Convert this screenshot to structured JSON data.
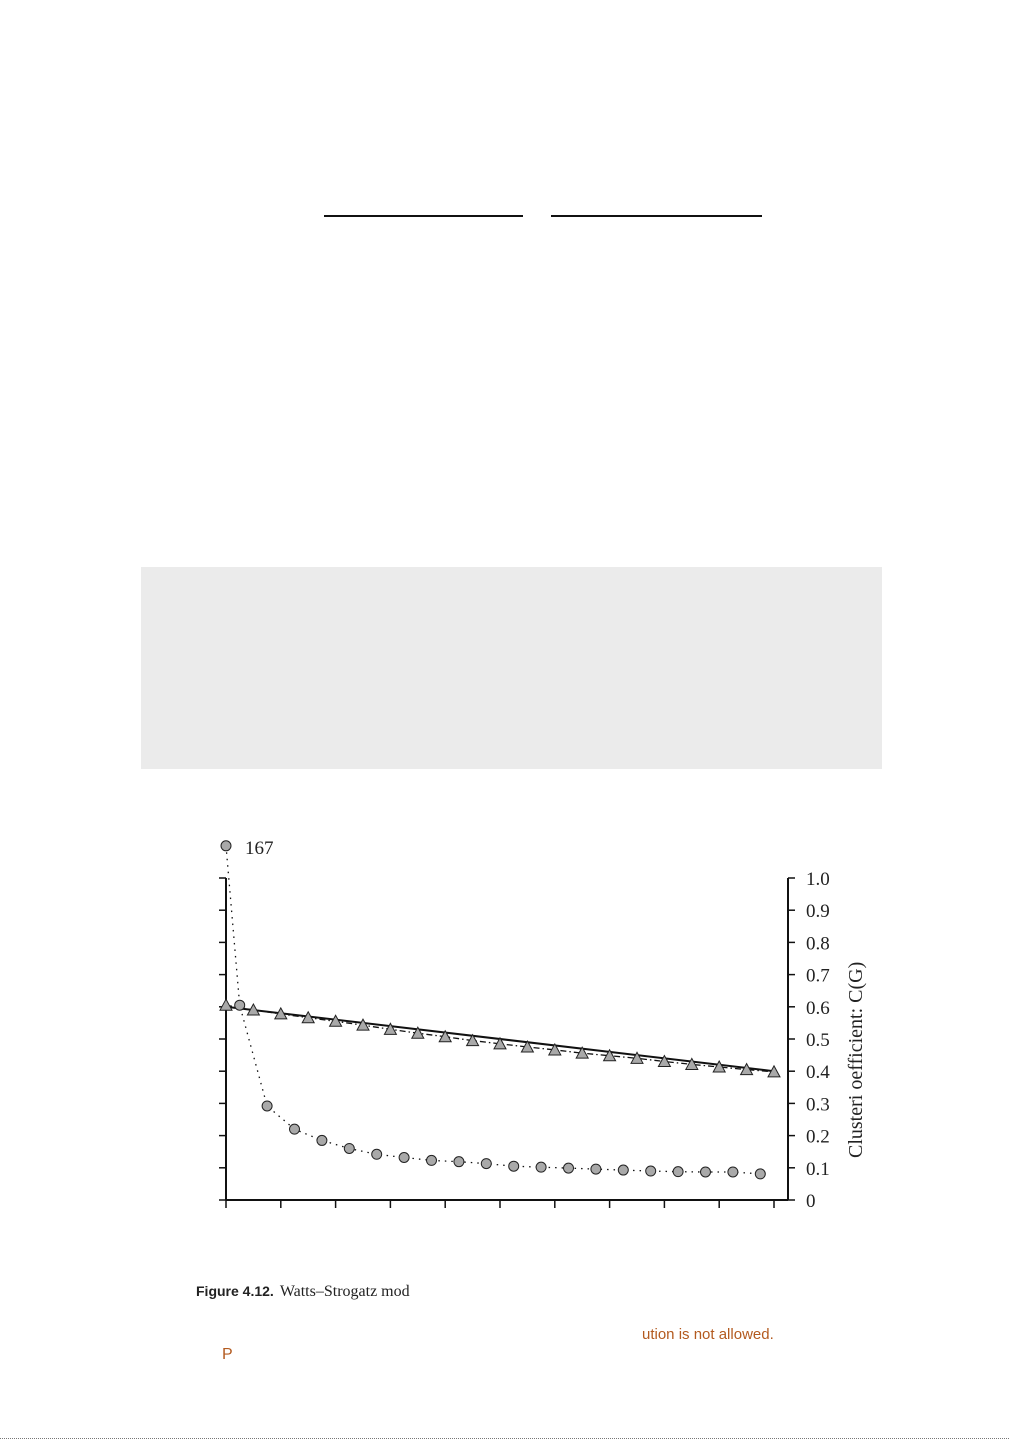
{
  "chart_data": {
    "type": "line",
    "y2label": "Clusteri      oefficient: C(G)",
    "y2ticks": [
      "0",
      "0.1",
      "0.2",
      "0.3",
      "0.4",
      "0.5",
      "0.6",
      "0.7",
      "0.8",
      "0.9",
      "1.0"
    ],
    "y2lim": [
      0,
      1.0
    ],
    "xticks_count": 11,
    "annotation": "167",
    "grid": false,
    "series": [
      {
        "marker": "circle",
        "style": "dotted",
        "points": [
          {
            "x": 0,
            "y": 1.1
          },
          {
            "x": 1,
            "y": 0.605
          },
          {
            "x": 3,
            "y": 0.292
          },
          {
            "x": 5,
            "y": 0.22
          },
          {
            "x": 7,
            "y": 0.185
          },
          {
            "x": 9,
            "y": 0.16
          },
          {
            "x": 11,
            "y": 0.142
          },
          {
            "x": 13,
            "y": 0.132
          },
          {
            "x": 15,
            "y": 0.123
          },
          {
            "x": 17,
            "y": 0.119
          },
          {
            "x": 19,
            "y": 0.113
          },
          {
            "x": 21,
            "y": 0.105
          },
          {
            "x": 23,
            "y": 0.102
          },
          {
            "x": 25,
            "y": 0.099
          },
          {
            "x": 27,
            "y": 0.096
          },
          {
            "x": 29,
            "y": 0.093
          },
          {
            "x": 31,
            "y": 0.09
          },
          {
            "x": 33,
            "y": 0.088
          },
          {
            "x": 35,
            "y": 0.087
          },
          {
            "x": 37,
            "y": 0.087
          },
          {
            "x": 39,
            "y": 0.081
          }
        ]
      },
      {
        "marker": "triangle",
        "style": "dash-dot",
        "points": [
          {
            "x": 0,
            "y": 0.605
          },
          {
            "x": 2,
            "y": 0.59
          },
          {
            "x": 4,
            "y": 0.578
          },
          {
            "x": 6,
            "y": 0.566
          },
          {
            "x": 8,
            "y": 0.555
          },
          {
            "x": 10,
            "y": 0.543
          },
          {
            "x": 12,
            "y": 0.53
          },
          {
            "x": 14,
            "y": 0.518
          },
          {
            "x": 16,
            "y": 0.507
          },
          {
            "x": 18,
            "y": 0.495
          },
          {
            "x": 20,
            "y": 0.485
          },
          {
            "x": 22,
            "y": 0.475
          },
          {
            "x": 24,
            "y": 0.466
          },
          {
            "x": 26,
            "y": 0.456
          },
          {
            "x": 28,
            "y": 0.448
          },
          {
            "x": 30,
            "y": 0.44
          },
          {
            "x": 32,
            "y": 0.43
          },
          {
            "x": 34,
            "y": 0.421
          },
          {
            "x": 36,
            "y": 0.413
          },
          {
            "x": 38,
            "y": 0.405
          },
          {
            "x": 40,
            "y": 0.398
          }
        ]
      },
      {
        "marker": "none",
        "style": "solid",
        "points": [
          {
            "x": 0,
            "y": 0.6
          },
          {
            "x": 40,
            "y": 0.4
          }
        ]
      }
    ]
  },
  "caption": {
    "label": "Figure 4.12.",
    "text": "Watts–Strogatz mod"
  },
  "notices": {
    "right": "ution is not allowed.",
    "left": "P"
  }
}
